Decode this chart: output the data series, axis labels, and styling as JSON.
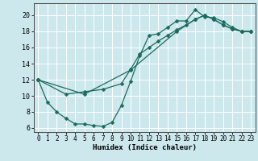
{
  "xlabel": "Humidex (Indice chaleur)",
  "bg_color": "#cce8ed",
  "line_color": "#1a6b5e",
  "grid_color": "#ffffff",
  "xlim": [
    -0.5,
    23.5
  ],
  "ylim": [
    5.5,
    21.5
  ],
  "xticks": [
    0,
    1,
    2,
    3,
    4,
    5,
    6,
    7,
    8,
    9,
    10,
    11,
    12,
    13,
    14,
    15,
    16,
    17,
    18,
    19,
    20,
    21,
    22,
    23
  ],
  "yticks": [
    6,
    8,
    10,
    12,
    14,
    16,
    18,
    20
  ],
  "series": [
    {
      "x": [
        0,
        1,
        2,
        3,
        4,
        5,
        6,
        7,
        8,
        9,
        10,
        11,
        12,
        13,
        14,
        15,
        16,
        17,
        18,
        19,
        20,
        21,
        22,
        23
      ],
      "y": [
        12,
        9.2,
        8.0,
        7.2,
        6.5,
        6.5,
        6.3,
        6.2,
        6.7,
        8.8,
        11.8,
        15.0,
        17.5,
        17.7,
        18.5,
        19.3,
        19.3,
        20.7,
        19.8,
        19.7,
        19.2,
        18.5,
        18.0,
        18.0
      ]
    },
    {
      "x": [
        0,
        5,
        10,
        15,
        17,
        18,
        19,
        20,
        21,
        22,
        23
      ],
      "y": [
        12,
        10.2,
        13.2,
        18.0,
        19.5,
        20.0,
        19.5,
        18.8,
        18.3,
        18.0,
        18.0
      ]
    },
    {
      "x": [
        0,
        3,
        5,
        7,
        9,
        10,
        11,
        12,
        13,
        14,
        15,
        16,
        17,
        18,
        19,
        20,
        21,
        22,
        23
      ],
      "y": [
        12,
        10.2,
        10.5,
        10.8,
        11.5,
        13.3,
        15.2,
        16.0,
        16.8,
        17.5,
        18.2,
        18.8,
        19.5,
        20.0,
        19.5,
        18.8,
        18.3,
        18.0,
        18.0
      ]
    }
  ]
}
